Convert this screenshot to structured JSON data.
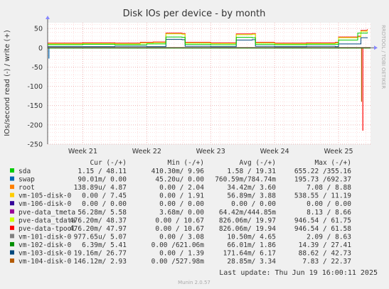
{
  "chart_data": {
    "type": "line",
    "title": "Disk IOs per device - by month",
    "ylabel": "IOs/second read (-) / write (+)",
    "side_label": "RRDTOOL / TOBI OETIKER",
    "ylim": [
      -250,
      65
    ],
    "yticks": [
      50,
      0,
      -50,
      -100,
      -150,
      -200,
      -250
    ],
    "xticks": [
      "Week 21",
      "Week 22",
      "Week 23",
      "Week 24",
      "Week 25"
    ],
    "x_units": "weeks",
    "xlim": [
      20.45,
      25.5
    ],
    "xtick_values": [
      21,
      22,
      23,
      24,
      25
    ],
    "legend_headers": [
      "Cur (-/+)",
      "Min (-/+)",
      "Avg (-/+)",
      "Max (-/+)"
    ],
    "series": [
      {
        "name": "sda",
        "color": "#00cc00",
        "cur": "1.15 / 48.11",
        "min": "410.30m/  9.96",
        "avg": "1.58 / 19.31",
        "max": "655.22 /355.16"
      },
      {
        "name": "swap",
        "color": "#0066b3",
        "cur": "90.01m/  0.00",
        "min": "45.20u/  0.00",
        "avg": "760.59m/784.74m",
        "max": "195.73 /692.37"
      },
      {
        "name": "root",
        "color": "#ff8000",
        "cur": "138.89u/  4.87",
        "min": "0.00 /  2.04",
        "avg": "34.42m/  3.60",
        "max": "7.08 /  8.88"
      },
      {
        "name": "vm-105-disk-0",
        "color": "#ffcc00",
        "cur": "0.00 /  7.45",
        "min": "0.00 /  1.91",
        "avg": "56.89m/  3.88",
        "max": "538.55 / 11.19"
      },
      {
        "name": "vm-106-disk-0",
        "color": "#330099",
        "cur": "0.00 /  0.00",
        "min": "0.00 /  0.00",
        "avg": "0.00 /  0.00",
        "max": "0.00 /  0.00"
      },
      {
        "name": "pve-data_tmeta",
        "color": "#990099",
        "cur": "56.28m/  5.58",
        "min": "3.68m/  0.00",
        "avg": "64.42m/444.85m",
        "max": "8.13 /  8.66"
      },
      {
        "name": "pve-data_tdata",
        "color": "#ccff00",
        "cur": "476.20m/ 48.37",
        "min": "0.00 / 10.67",
        "avg": "826.06m/ 19.97",
        "max": "946.54 / 61.75"
      },
      {
        "name": "pve-data-tpool",
        "color": "#ff0000",
        "cur": "476.20m/ 47.97",
        "min": "0.00 / 10.67",
        "avg": "826.06m/ 19.94",
        "max": "946.54 / 61.58"
      },
      {
        "name": "vm-101-disk-0",
        "color": "#808080",
        "cur": "977.65u/  5.07",
        "min": "0.00 /  3.08",
        "avg": "10.50m/  4.65",
        "max": "2.09 /  8.63"
      },
      {
        "name": "vm-102-disk-0",
        "color": "#008f00",
        "cur": "6.39m/  5.41",
        "min": "0.00 /621.06m",
        "avg": "66.01m/  1.86",
        "max": "14.39 / 27.41"
      },
      {
        "name": "vm-103-disk-0",
        "color": "#00487d",
        "cur": "19.16m/ 26.77",
        "min": "0.00 /  1.39",
        "avg": "171.64m/  6.17",
        "max": "88.62 / 42.73"
      },
      {
        "name": "vm-104-disk-0",
        "color": "#b35a00",
        "cur": "146.12m/  2.93",
        "min": "0.00 /527.98m",
        "avg": "28.85m/  3.34",
        "max": "7.83 / 22.37"
      }
    ],
    "write_profiles": [
      {
        "series": "pve-data-tpool",
        "color": "#ff0000",
        "points": [
          [
            20.45,
            12
          ],
          [
            21.0,
            13
          ],
          [
            21.5,
            12
          ],
          [
            21.9,
            14
          ],
          [
            22.1,
            15
          ],
          [
            22.3,
            38
          ],
          [
            22.55,
            37
          ],
          [
            22.6,
            14
          ],
          [
            23.0,
            13
          ],
          [
            23.35,
            13
          ],
          [
            23.4,
            36
          ],
          [
            23.65,
            37
          ],
          [
            23.7,
            14
          ],
          [
            24.0,
            12
          ],
          [
            24.5,
            13
          ],
          [
            24.95,
            14
          ],
          [
            25.0,
            28
          ],
          [
            25.3,
            30
          ],
          [
            25.35,
            45
          ],
          [
            25.45,
            48
          ]
        ]
      },
      {
        "series": "pve-data_tdata",
        "color": "#ccff00",
        "points": [
          [
            20.45,
            10
          ],
          [
            21.0,
            11
          ],
          [
            21.5,
            10
          ],
          [
            21.9,
            12
          ],
          [
            22.1,
            13
          ],
          [
            22.3,
            36
          ],
          [
            22.55,
            35
          ],
          [
            22.6,
            12
          ],
          [
            23.0,
            11
          ],
          [
            23.35,
            11
          ],
          [
            23.4,
            34
          ],
          [
            23.65,
            35
          ],
          [
            23.7,
            12
          ],
          [
            24.0,
            10
          ],
          [
            24.5,
            11
          ],
          [
            24.95,
            12
          ],
          [
            25.0,
            26
          ],
          [
            25.3,
            28
          ],
          [
            25.35,
            43
          ],
          [
            25.45,
            46
          ]
        ]
      },
      {
        "series": "vm-103-disk-0",
        "color": "#00487d",
        "points": [
          [
            20.45,
            3
          ],
          [
            21.0,
            3
          ],
          [
            21.5,
            4
          ],
          [
            22.0,
            3
          ],
          [
            22.3,
            22
          ],
          [
            22.55,
            21
          ],
          [
            22.6,
            4
          ],
          [
            23.0,
            3
          ],
          [
            23.35,
            3
          ],
          [
            23.4,
            20
          ],
          [
            23.65,
            21
          ],
          [
            23.7,
            4
          ],
          [
            24.0,
            3
          ],
          [
            24.5,
            4
          ],
          [
            24.95,
            3
          ],
          [
            25.0,
            10
          ],
          [
            25.35,
            26
          ],
          [
            25.45,
            25
          ]
        ]
      },
      {
        "series": "sda",
        "color": "#00cc00",
        "points": [
          [
            20.45,
            8
          ],
          [
            21.0,
            9
          ],
          [
            21.5,
            8
          ],
          [
            22.0,
            10
          ],
          [
            22.3,
            28
          ],
          [
            22.55,
            27
          ],
          [
            22.6,
            9
          ],
          [
            23.0,
            8
          ],
          [
            23.4,
            27
          ],
          [
            23.65,
            26
          ],
          [
            23.7,
            9
          ],
          [
            24.0,
            8
          ],
          [
            24.5,
            9
          ],
          [
            25.0,
            20
          ],
          [
            25.3,
            38
          ],
          [
            25.45,
            40
          ]
        ]
      }
    ],
    "read_dips": [
      {
        "series": "pve-data-tpool",
        "color": "#ff0000",
        "x": 25.38,
        "y": -215
      },
      {
        "series": "vm-104-disk-0",
        "color": "#b35a00",
        "x": 25.36,
        "y": -140
      },
      {
        "series": "swap",
        "color": "#0066b3",
        "x": 20.47,
        "y": -28
      }
    ],
    "last_update": "Last update: Thu Jun 19 16:00:11 2025",
    "footer": "Munin 2.0.57",
    "grid": true
  }
}
